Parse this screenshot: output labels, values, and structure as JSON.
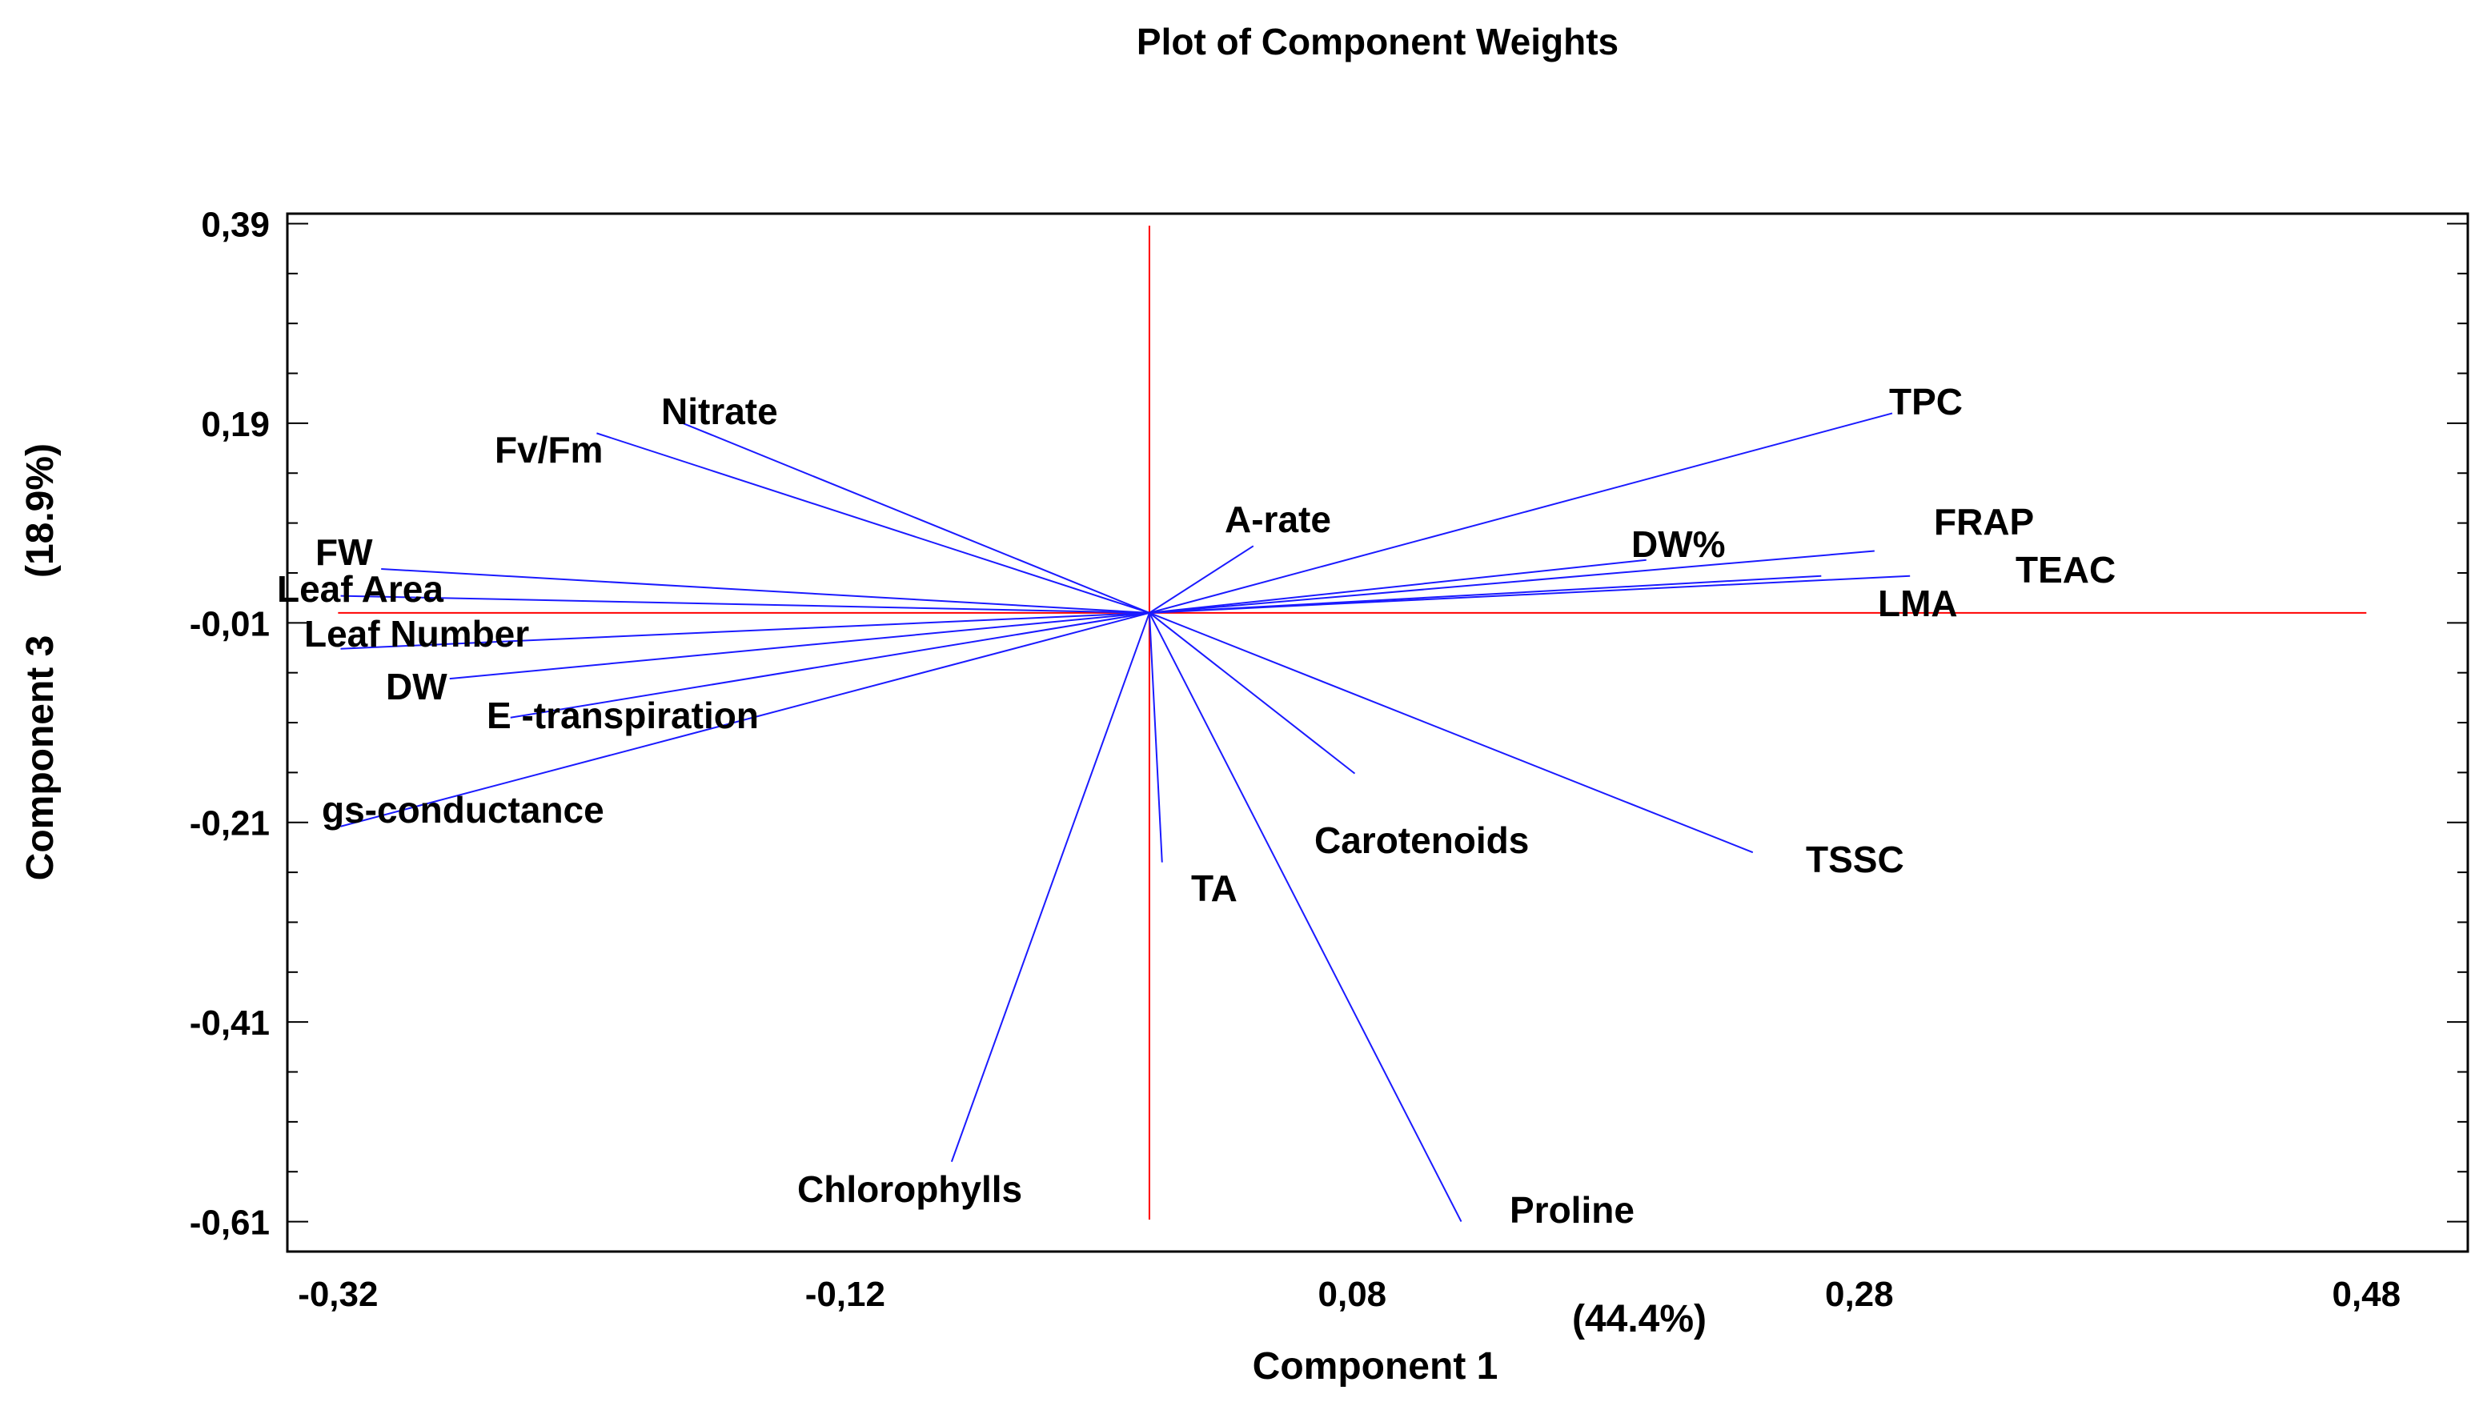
{
  "chart_data": {
    "type": "biplot",
    "title": "Plot of Component Weights",
    "xlabel": "Component 1",
    "ylabel": "Component 3",
    "x_variance": "(44.4%)",
    "y_variance": "(18.9%)",
    "xlim": [
      -0.34,
      0.52
    ],
    "ylim": [
      -0.64,
      0.4
    ],
    "x_ticks": [
      -0.32,
      -0.12,
      0.08,
      0.28,
      0.48
    ],
    "x_tick_labels": [
      "-0,32",
      "-0,12",
      "0,08",
      "0,28",
      "0,48"
    ],
    "y_ticks": [
      0.39,
      0.19,
      -0.01,
      -0.21,
      -0.41,
      -0.61
    ],
    "y_tick_labels": [
      "0,39",
      "0,19",
      "-0,01",
      "-0,21",
      "-0,41",
      "-0,61"
    ],
    "vector_color": "#1a1aff",
    "reference_line_color": "#ff0000",
    "vectors": [
      {
        "label": "Nitrate",
        "x": -0.184,
        "y": 0.19
      },
      {
        "label": "Fv/Fm",
        "x": -0.218,
        "y": 0.18
      },
      {
        "label": "FW",
        "x": -0.303,
        "y": 0.044
      },
      {
        "label": "Leaf Area",
        "x": -0.319,
        "y": 0.017
      },
      {
        "label": "Leaf Number",
        "x": -0.319,
        "y": -0.036
      },
      {
        "label": "DW",
        "x": -0.276,
        "y": -0.066
      },
      {
        "label": "E -transpiration",
        "x": -0.252,
        "y": -0.105
      },
      {
        "label": "gs-conductance",
        "x": -0.319,
        "y": -0.214
      },
      {
        "label": "A-rate",
        "x": 0.041,
        "y": 0.067
      },
      {
        "label": "TPC",
        "x": 0.293,
        "y": 0.2
      },
      {
        "label": "DW%",
        "x": 0.196,
        "y": 0.053
      },
      {
        "label": "FRAP",
        "x": 0.286,
        "y": 0.062
      },
      {
        "label": "TEAC",
        "x": 0.3,
        "y": 0.037
      },
      {
        "label": "LMA",
        "x": 0.265,
        "y": 0.037
      },
      {
        "label": "Carotenoids",
        "x": 0.081,
        "y": -0.161
      },
      {
        "label": "TSSC",
        "x": 0.238,
        "y": -0.24
      },
      {
        "label": "TA",
        "x": 0.005,
        "y": -0.25
      },
      {
        "label": "Proline",
        "x": 0.123,
        "y": -0.61
      },
      {
        "label": "Chlorophylls",
        "x": -0.078,
        "y": -0.55
      }
    ]
  }
}
